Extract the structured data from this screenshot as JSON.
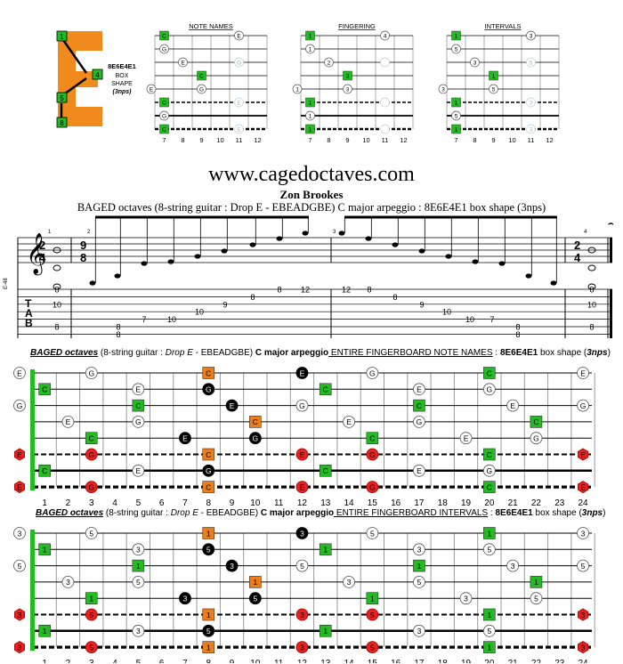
{
  "logo": {
    "letter": "E",
    "shape_name": "8E6E4E1",
    "box": "BOX",
    "shape": "SHAPE",
    "nps": "(3nps)",
    "dots": [
      "1",
      "4",
      "5",
      "8"
    ]
  },
  "mini_diagrams": {
    "titles": [
      "NOTE NAMES",
      "FINGERING",
      "INTERVALS"
    ],
    "fret_numbers": [
      "7",
      "8",
      "9",
      "10",
      "11",
      "12"
    ]
  },
  "header": {
    "url": "www.cagedoctaves.com",
    "author": "Zon Brookes",
    "subtitle": "BAGED octaves (8-string guitar : Drop E - EBEADGBE) C major arpeggio : 8E6E4E1 box shape (3nps)"
  },
  "notation": {
    "time_sig_a": [
      "2",
      "4"
    ],
    "time_sig_b": [
      "9",
      "8"
    ],
    "clef_label": "E-48",
    "measure_numbers": [
      "1",
      "2",
      "3",
      "4"
    ],
    "tab_letters": [
      "T",
      "A",
      "B"
    ],
    "tab_m1": [
      "8",
      "10",
      "8",
      "8"
    ],
    "tab_m2": [
      "8",
      "8",
      "8",
      "7",
      "10",
      "10",
      "9",
      "8",
      "8",
      "12"
    ],
    "tab_m3": [
      "12",
      "8",
      "8",
      "9",
      "10",
      "10",
      "7",
      "8",
      "8",
      "8"
    ],
    "tab_m4": [
      "8",
      "10",
      "8",
      "8"
    ]
  },
  "chart1": {
    "prefix": "BAGED octaves",
    "part2": " (8-string guitar : ",
    "part3": "Drop E",
    "part4": " - EBEADGBE) ",
    "part5": "C major arpeggio",
    "part6": " ENTIRE FINGERBOARD NOTE NAMES",
    "part7": " : ",
    "part8": "8E6E4E1",
    "part9": " box shape (",
    "part10": "3nps",
    "part11": ")"
  },
  "chart2": {
    "prefix": "BAGED octaves",
    "part2": " (8-string guitar : ",
    "part3": "Drop E",
    "part4": " - EBEADGBE) ",
    "part5": "C major arpeggio",
    "part6": " ENTIRE FINGERBOARD INTERVALS",
    "part7": " : ",
    "part8": "8E6E4E1",
    "part9": " box shape (",
    "part10": "3nps",
    "part11": ")"
  },
  "fret_numbers": [
    "1",
    "2",
    "3",
    "4",
    "5",
    "6",
    "7",
    "8",
    "9",
    "10",
    "11",
    "12",
    "13",
    "14",
    "15",
    "16",
    "17",
    "18",
    "19",
    "20",
    "21",
    "22",
    "23",
    "24"
  ],
  "colors": {
    "green": "#22bb22",
    "orange": "#ee7d18",
    "red": "#e82020",
    "black": "#000000"
  }
}
